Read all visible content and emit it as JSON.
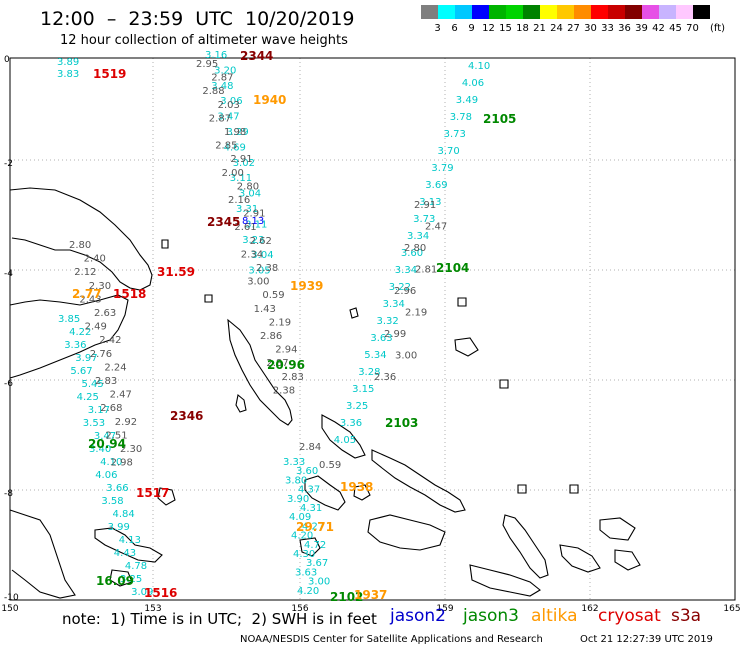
{
  "header": {
    "title": "12:00  –  23:59  UTC  10/20/2019",
    "subtitle": "12 hour collection of altimeter wave heights"
  },
  "legend": {
    "swatches": [
      {
        "color": "#7f7f7f",
        "label": "3"
      },
      {
        "color": "#00ffff",
        "label": "6"
      },
      {
        "color": "#00c8ff",
        "label": "9"
      },
      {
        "color": "#0000ff",
        "label": "12"
      },
      {
        "color": "#00b400",
        "label": "15"
      },
      {
        "color": "#00d400",
        "label": "18"
      },
      {
        "color": "#008200",
        "label": "21"
      },
      {
        "color": "#ffff00",
        "label": "24"
      },
      {
        "color": "#ffc800",
        "label": "27"
      },
      {
        "color": "#ff8c00",
        "label": "30"
      },
      {
        "color": "#ff0000",
        "label": "33"
      },
      {
        "color": "#c80000",
        "label": "36"
      },
      {
        "color": "#820000",
        "label": "39"
      },
      {
        "color": "#e650e6",
        "label": "42"
      },
      {
        "color": "#c8b4ff",
        "label": "45"
      },
      {
        "color": "#ffc8ff",
        "label": "70"
      },
      {
        "color": "#000000",
        "label": ""
      }
    ],
    "unit": "(ft)"
  },
  "axes": {
    "x_ticks": [
      "150",
      "153",
      "156",
      "159",
      "162",
      "165"
    ],
    "y_ticks": [
      "0",
      "-2",
      "-4",
      "-6",
      "-8",
      "-10"
    ]
  },
  "tracks": {
    "track_a": {
      "color": "#00c8c8",
      "values": [
        "4.10",
        "4.06",
        "3.49",
        "3.78",
        "3.73",
        "3.70",
        "3.79",
        "3.69",
        "3.13",
        "3.73",
        "3.34",
        "3.60",
        "3.34",
        "3.22",
        "3.34",
        "3.32",
        "3.63",
        "5.34",
        "3.28",
        "3.15",
        "3.25",
        "3.36",
        "4.05"
      ]
    },
    "track_a_gray": {
      "color": "#555555",
      "values": [
        "2.91",
        "2.47",
        "2.80",
        "2.81",
        "2.96",
        "2.19",
        "2.99",
        "3.00",
        "2.36"
      ]
    },
    "track_b": {
      "color": "#00c8c8",
      "values": [
        "3.16",
        "3.20",
        "3.48",
        "3.06",
        "3.47",
        "3.29",
        "4.69",
        "3.02",
        "3.11",
        "3.04",
        "3.31",
        "3.11",
        "3.23",
        "3.04",
        "3.05"
      ]
    },
    "track_b_gray": {
      "color": "#555555",
      "values": [
        "2.95",
        "2.87",
        "2.88",
        "2.03",
        "2.87",
        "1.98",
        "2.85",
        "2.91",
        "2.00",
        "2.80",
        "2.16",
        "2.91",
        "2.61",
        "2.62",
        "2.34",
        "2.38",
        "3.00",
        "0.59",
        "1.43",
        "2.19",
        "2.86",
        "2.94",
        "2.87",
        "2.83",
        "2.38"
      ]
    },
    "track_b_blue": {
      "color": "#0000ff",
      "values": [
        "8.13"
      ]
    },
    "track_c": {
      "color": "#00c8c8",
      "values": [
        "3.85",
        "4.22",
        "3.36",
        "3.97",
        "5.67",
        "5.45",
        "4.25",
        "3.17",
        "3.53",
        "3.47",
        "3.40",
        "4.10",
        "4.06",
        "3.66",
        "3.58",
        "4.84",
        "3.99",
        "4.13",
        "4.43",
        "4.78",
        "3.25",
        "3.09"
      ]
    },
    "track_c_gray": {
      "color": "#555555",
      "values": [
        "2.80",
        "2.40",
        "2.12",
        "2.30",
        "2.43",
        "2.63",
        "2.49",
        "2.42",
        "2.76",
        "2.24",
        "2.83",
        "2.47",
        "2.68",
        "2.92",
        "2.51",
        "2.30",
        "2.98"
      ]
    },
    "track_d": {
      "color": "#00c8c8",
      "values": [
        "3.33",
        "3.60",
        "3.80",
        "4.37",
        "3.90",
        "4.31",
        "4.09",
        "4.27",
        "4.20",
        "4.72",
        "4.30",
        "3.67",
        "3.63",
        "3.00",
        "4.20"
      ]
    },
    "track_d_gray": {
      "color": "#555555",
      "values": [
        "2.84",
        "0.59"
      ]
    },
    "track_e_cyan": {
      "color": "#00c8c8",
      "values": [
        "3.89",
        "3.83"
      ]
    }
  },
  "highlights": [
    {
      "text": "1519",
      "color": "#dd0000"
    },
    {
      "text": "2344",
      "color": "#880000"
    },
    {
      "text": "1940",
      "color": "#ff9900"
    },
    {
      "text": "2105",
      "color": "#008800"
    },
    {
      "text": "2345",
      "color": "#880000"
    },
    {
      "text": "2104",
      "color": "#008800"
    },
    {
      "text": "31.59",
      "color": "#dd0000"
    },
    {
      "text": "1518",
      "color": "#dd0000"
    },
    {
      "text": "2.77",
      "color": "#ff9900"
    },
    {
      "text": "1939",
      "color": "#ff9900"
    },
    {
      "text": "20.96",
      "color": "#008800"
    },
    {
      "text": "2346",
      "color": "#880000"
    },
    {
      "text": "2103",
      "color": "#008800"
    },
    {
      "text": "20.94",
      "color": "#008800"
    },
    {
      "text": "1517",
      "color": "#dd0000"
    },
    {
      "text": "1938",
      "color": "#ff9900"
    },
    {
      "text": "29.71",
      "color": "#ff9900"
    },
    {
      "text": "16.09",
      "color": "#008800"
    },
    {
      "text": "1516",
      "color": "#dd0000"
    },
    {
      "text": "2102",
      "color": "#008800"
    },
    {
      "text": "1937",
      "color": "#ff9900"
    }
  ],
  "footer": {
    "note": "note:  1) Time is in UTC;  2) SWH is in feet",
    "missions": [
      {
        "name": "jason2",
        "color": "#0000cc"
      },
      {
        "name": "jason3",
        "color": "#008800"
      },
      {
        "name": "altika",
        "color": "#ff9900"
      },
      {
        "name": "cryosat",
        "color": "#dd0000"
      },
      {
        "name": "s3a",
        "color": "#880000"
      }
    ],
    "credit": "NOAA/NESDIS Center for Satellite Applications and Research",
    "generated": "Oct 21 12:27:39 UTC 2019"
  }
}
